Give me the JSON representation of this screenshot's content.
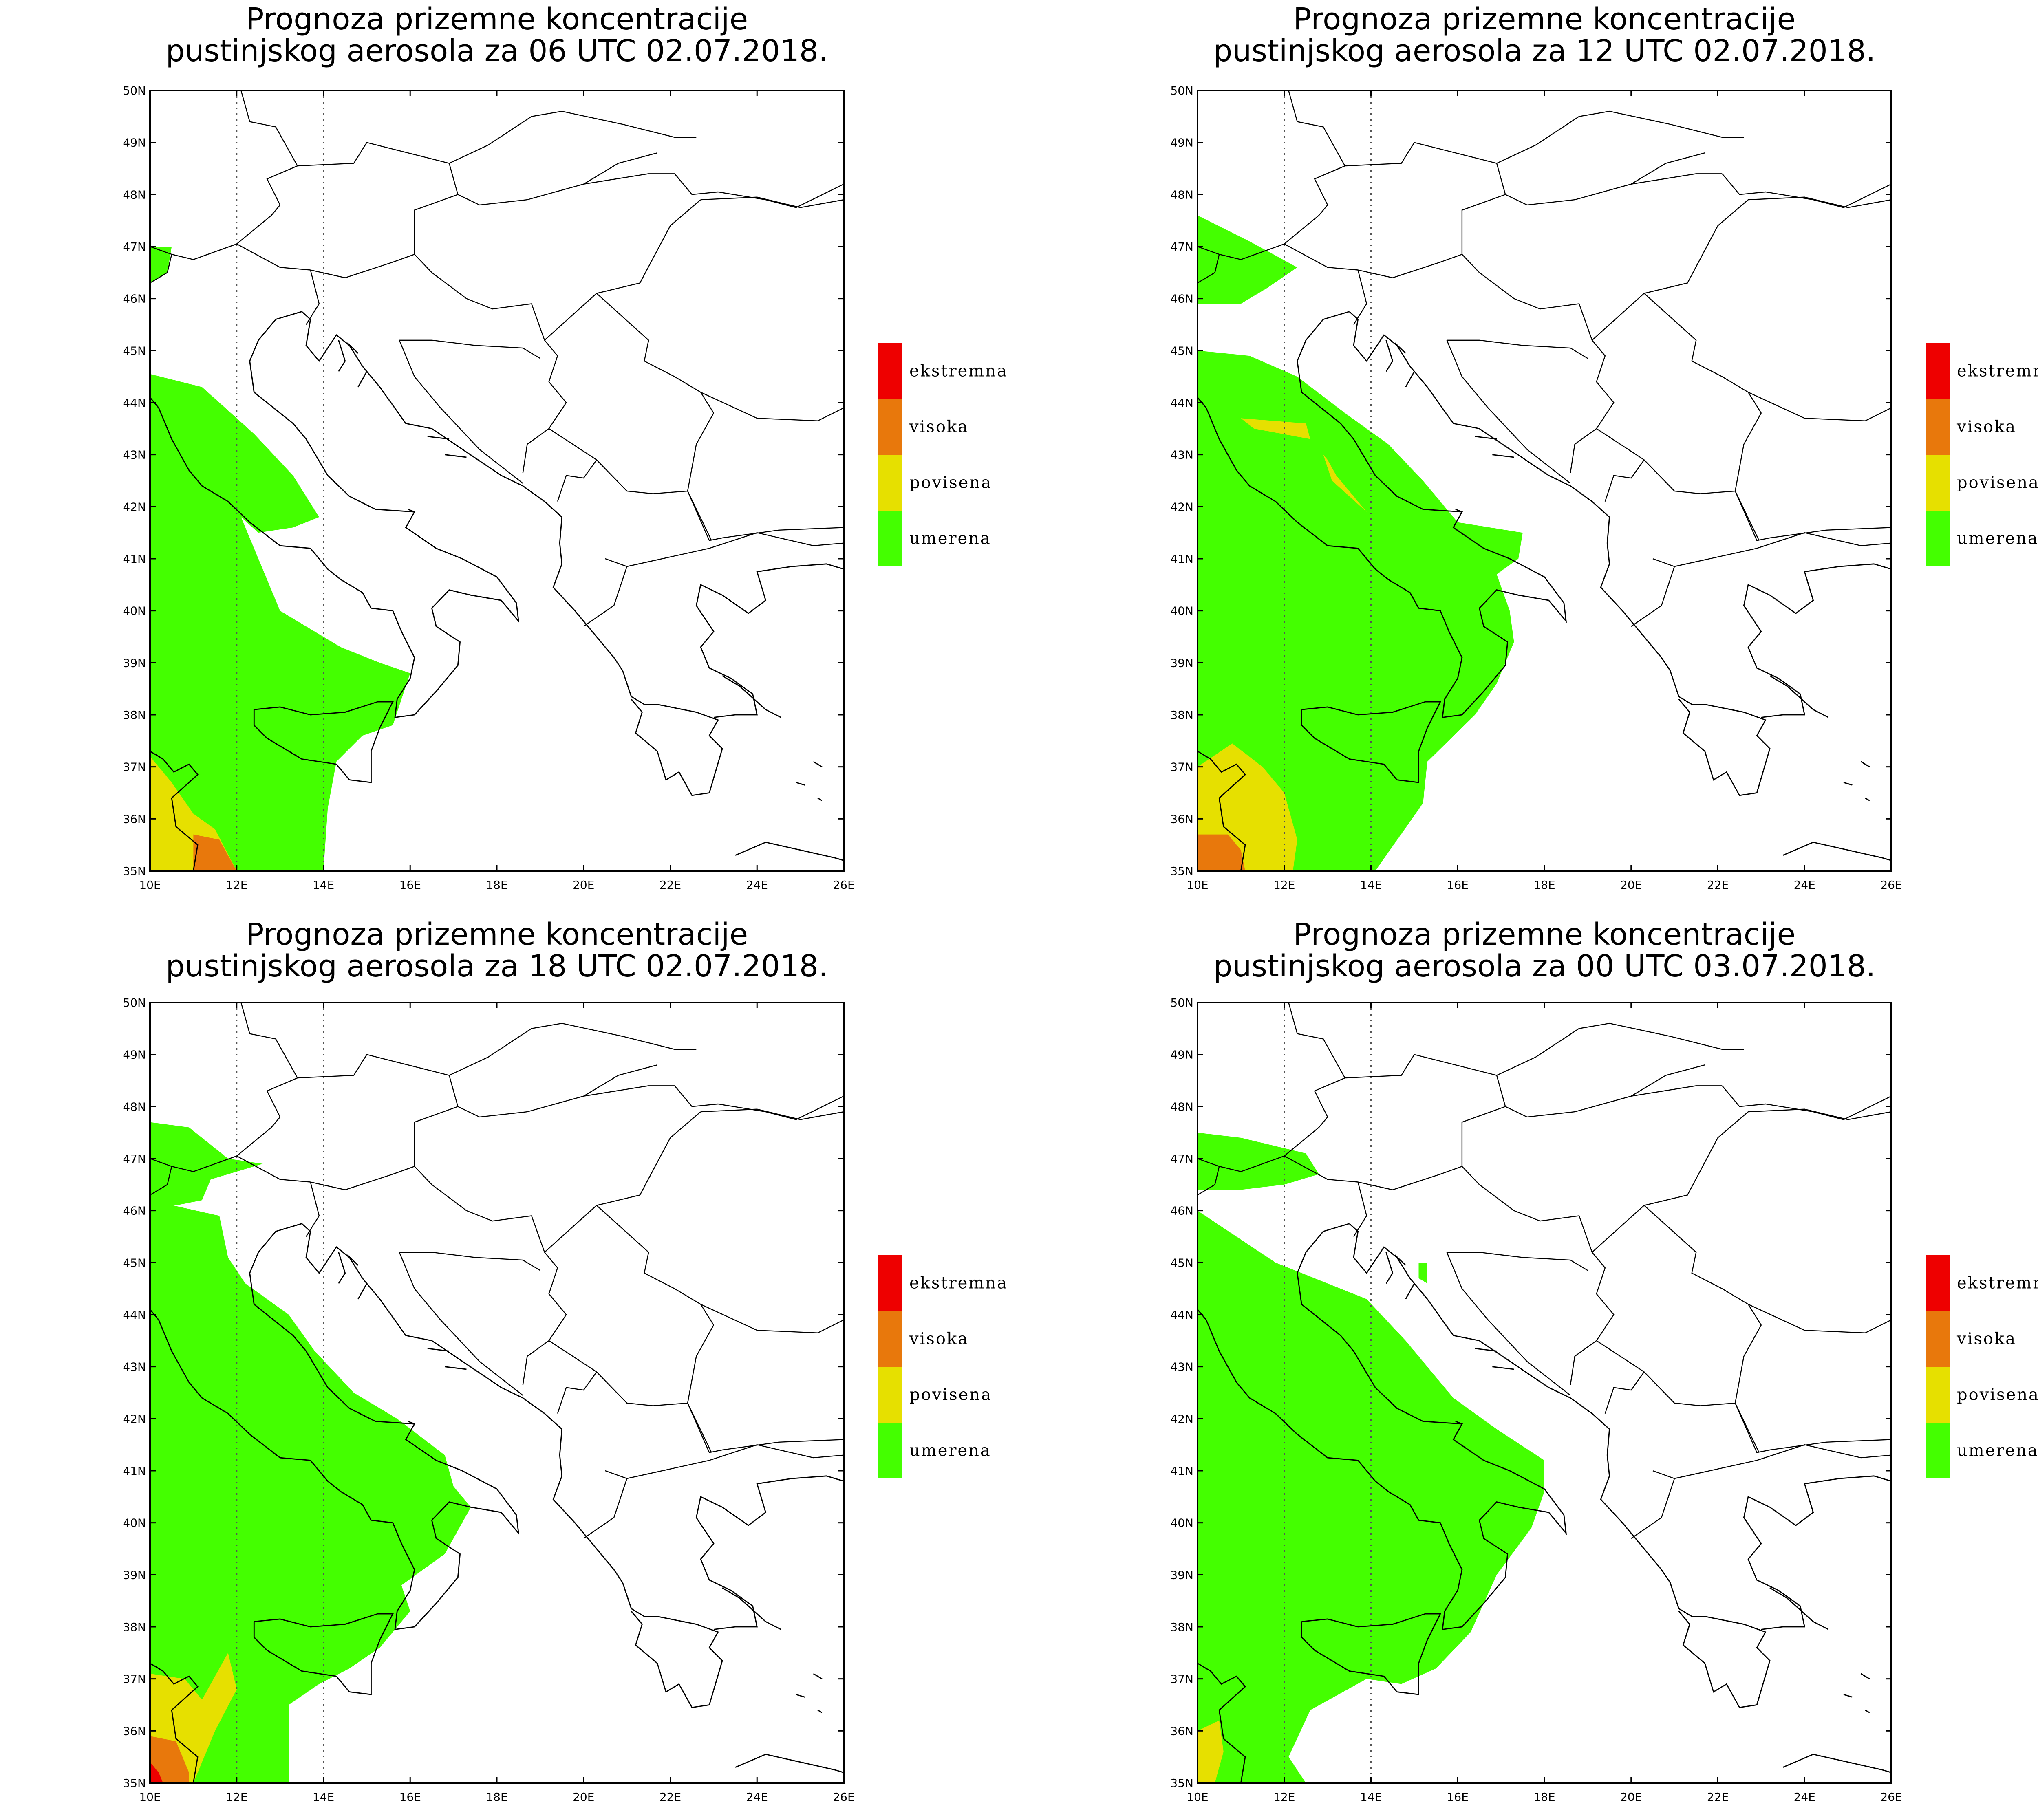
{
  "colors": {
    "ekstremna": "#ee0000",
    "visoka": "#e8780c",
    "povisena": "#e6e000",
    "umerena": "#44ff00",
    "coast": "#000000",
    "grid": "#555555"
  },
  "legend": [
    {
      "key": "ekstremna",
      "label": "ekstremna"
    },
    {
      "key": "visoka",
      "label": "visoka"
    },
    {
      "key": "povisena",
      "label": "povisena"
    },
    {
      "key": "umerena",
      "label": "umerena"
    }
  ],
  "axes": {
    "x_ticks": [
      "10E",
      "12E",
      "14E",
      "16E",
      "18E",
      "20E",
      "22E",
      "24E",
      "26E"
    ],
    "y_ticks": [
      "35N",
      "36N",
      "37N",
      "38N",
      "39N",
      "40N",
      "41N",
      "42N",
      "43N",
      "44N",
      "45N",
      "46N",
      "47N",
      "48N",
      "49N",
      "50N"
    ],
    "lon_range": [
      10,
      26
    ],
    "lat_range": [
      35,
      50
    ],
    "grid": "dotted meridians at 12E and 14E"
  },
  "panels": [
    {
      "title_line1": "Prognoza prizemne koncentracije",
      "title_line2": "pustinjskog aerosola za 06 UTC 02.07.2018."
    },
    {
      "title_line1": "Prognoza prizemne koncentracije",
      "title_line2": "pustinjskog aerosola za 12 UTC 02.07.2018."
    },
    {
      "title_line1": "Prognoza prizemne koncentracije",
      "title_line2": "pustinjskog aerosola za 18 UTC 02.07.2018."
    },
    {
      "title_line1": "Prognoza prizemne koncentracije",
      "title_line2": "pustinjskog aerosola za 00 UTC 03.07.2018."
    }
  ]
}
